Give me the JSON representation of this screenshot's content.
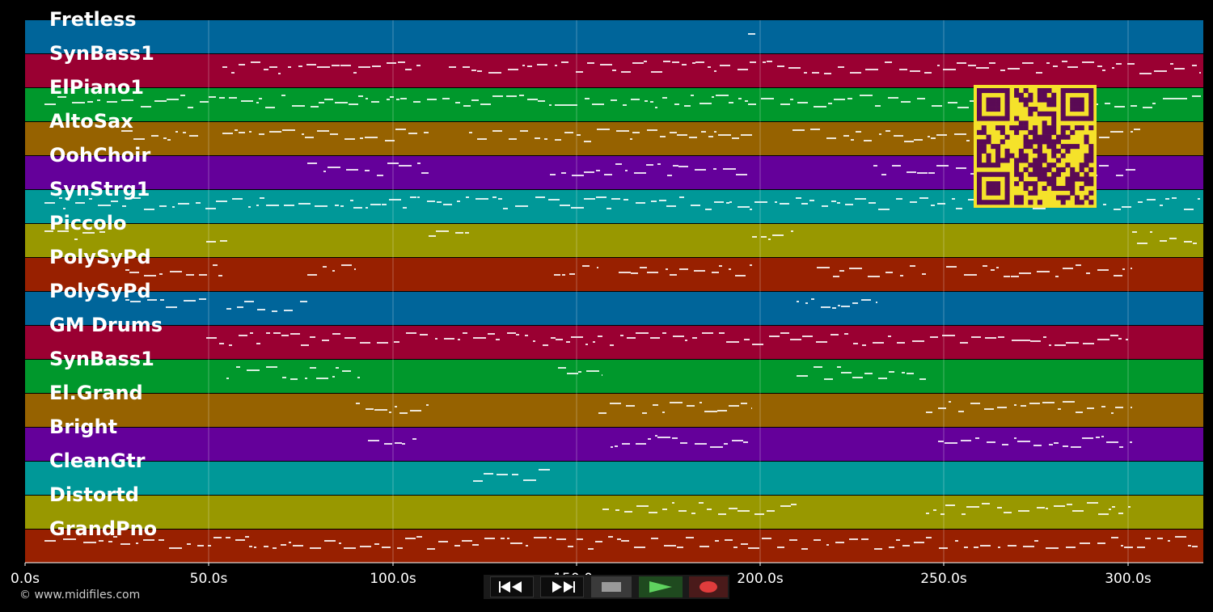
{
  "axis": {
    "x_labels": [
      "0.0s",
      "50.0s",
      "100.0s",
      "150.0s",
      "200.0s",
      "250.0s",
      "300.0s"
    ]
  },
  "colors": {
    "background": "#000000",
    "track_palette": [
      "#00659a",
      "#9a0032",
      "#00982c",
      "#966200",
      "#64009a",
      "#009898",
      "#989800",
      "#982000"
    ],
    "qr_fg": "#5a0a55",
    "qr_bg": "#f5e22a"
  },
  "tracks": [
    {
      "label": "Fretless"
    },
    {
      "label": "SynBass1"
    },
    {
      "label": "ElPiano1"
    },
    {
      "label": "AltoSax"
    },
    {
      "label": "OohChoir"
    },
    {
      "label": "SynStrg1"
    },
    {
      "label": "Piccolo"
    },
    {
      "label": "PolySyPd"
    },
    {
      "label": "PolySyPd"
    },
    {
      "label": "GM Drums"
    },
    {
      "label": "SynBass1"
    },
    {
      "label": "El.Grand"
    },
    {
      "label": "Bright"
    },
    {
      "label": "CleanGtr"
    },
    {
      "label": "Distortd"
    },
    {
      "label": "GrandPno"
    }
  ],
  "footer": {
    "copyright": "© www.midifiles.com"
  },
  "transport": {
    "rewind": "rewind-icon",
    "fast_forward": "fast-forward-icon",
    "stop": "stop-icon",
    "play": "play-icon",
    "record": "record-icon"
  },
  "qr_code": "qr-code-icon"
}
